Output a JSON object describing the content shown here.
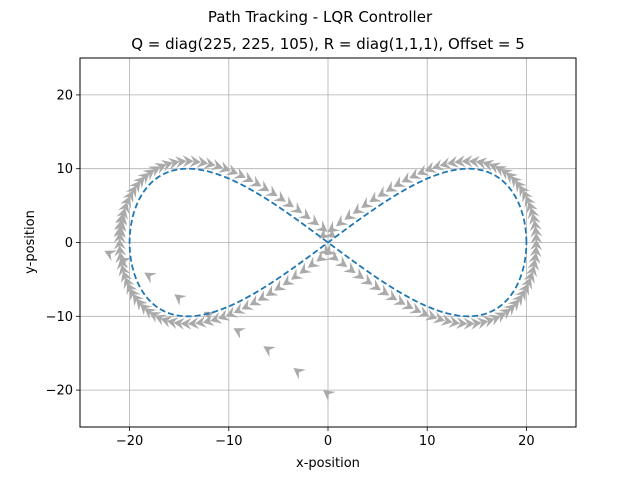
{
  "chart_data": {
    "type": "line",
    "title": "Path Tracking - LQR Controller",
    "subtitle": "Q = diag(225, 225, 105), R = diag(1,1,1), Offset =  5",
    "xlabel": "x-position",
    "ylabel": "y-position",
    "xlim": [
      -25,
      25
    ],
    "ylim": [
      -25,
      25
    ],
    "xticks": [
      -20,
      -10,
      0,
      10,
      20
    ],
    "yticks": [
      -20,
      -10,
      0,
      10,
      20
    ],
    "xtick_labels": [
      "−20",
      "−10",
      "0",
      "10",
      "20"
    ],
    "ytick_labels": [
      "−20",
      "−10",
      "0",
      "10",
      "20"
    ],
    "grid": true,
    "series": [
      {
        "kind": "reference-path",
        "style": "dashed",
        "color": "#1f77b4",
        "shape": "figure-eight",
        "x_amplitude": 20,
        "y_amplitude": 10
      },
      {
        "kind": "vehicle-poses",
        "marker": "arrowhead",
        "color": "#aaaaaa",
        "start": [
          0,
          -20.5
        ],
        "approach_points": [
          [
            0,
            -20.5
          ],
          [
            -3,
            -17.5
          ],
          [
            -6,
            -14.5
          ],
          [
            -9,
            -12
          ],
          [
            -12,
            -9.8
          ],
          [
            -15,
            -7.5
          ],
          [
            -18,
            -4.5
          ],
          [
            -20.5,
            -2.5
          ],
          [
            -22,
            -1.5
          ]
        ],
        "tracked_offset_outward": 1
      }
    ]
  }
}
